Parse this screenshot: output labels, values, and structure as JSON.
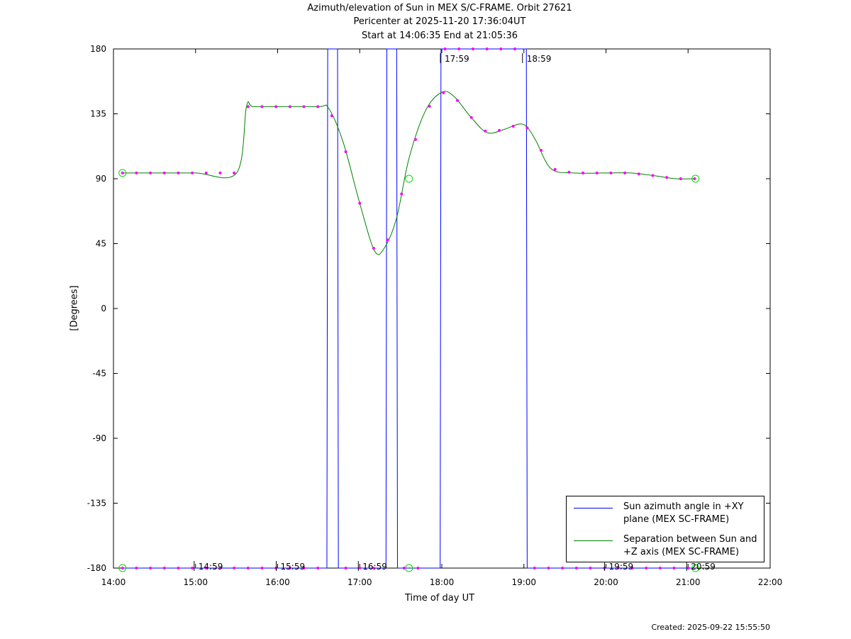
{
  "title": {
    "line1": "Azimuth/elevation of Sun in MEX S/C-FRAME.  Orbit 27621",
    "line2": "Pericenter at 2025-11-20 17:36:04UT",
    "line3": "Start at 14:06:35 End at 21:05:36"
  },
  "created": "Created: 2025-09-22 15:55:50",
  "colors": {
    "azimuth": "#0000ff",
    "separation": "#008000",
    "markers": "#ff00ff",
    "circles": "#00dd00"
  },
  "chart_data": {
    "type": "line",
    "xlabel": "Time of day UT",
    "ylabel": "[Degrees]",
    "xlim": [
      14.0,
      22.0
    ],
    "ylim": [
      -180,
      180
    ],
    "x_ticks": [
      {
        "value": 14,
        "label": "14:00"
      },
      {
        "value": 15,
        "label": "15:00"
      },
      {
        "value": 16,
        "label": "16:00"
      },
      {
        "value": 17,
        "label": "17:00"
      },
      {
        "value": 18,
        "label": "18:00"
      },
      {
        "value": 19,
        "label": "19:00"
      },
      {
        "value": 20,
        "label": "20:00"
      },
      {
        "value": 21,
        "label": "21:00"
      },
      {
        "value": 22,
        "label": "22:00"
      }
    ],
    "y_ticks": [
      180,
      135,
      90,
      45,
      0,
      -45,
      -90,
      -135,
      -180
    ],
    "annotations": [
      {
        "x": 14.983,
        "y": -180,
        "label": "14:59"
      },
      {
        "x": 15.983,
        "y": -180,
        "label": "15:59"
      },
      {
        "x": 16.983,
        "y": -180,
        "label": "16:59"
      },
      {
        "x": 17.983,
        "y": 180,
        "label": "17:59"
      },
      {
        "x": 18.983,
        "y": 180,
        "label": "18:59"
      },
      {
        "x": 19.983,
        "y": -180,
        "label": "19:59"
      },
      {
        "x": 20.983,
        "y": -180,
        "label": "20:59"
      }
    ],
    "series": [
      {
        "name": "Sun azimuth angle in +XY plane (MEX SC-FRAME)",
        "x": [
          14.11,
          16.6,
          16.61,
          16.73,
          16.74,
          17.32,
          17.33,
          17.45,
          17.46,
          17.98,
          17.99,
          19.03,
          19.04,
          21.09
        ],
        "y": [
          -180,
          -180,
          180,
          180,
          -180,
          -180,
          180,
          180,
          -180,
          -180,
          180,
          180,
          -180,
          -180
        ]
      },
      {
        "name": "Separation between Sun and +Z axis (MEX SC-FRAME)",
        "x": [
          14.11,
          14.5,
          15.0,
          15.5,
          15.62,
          15.7,
          16.0,
          16.5,
          16.62,
          16.8,
          17.0,
          17.18,
          17.3,
          17.45,
          17.6,
          17.8,
          18.0,
          18.15,
          18.35,
          18.55,
          18.75,
          18.95,
          19.05,
          19.15,
          19.33,
          19.6,
          20.0,
          20.3,
          20.6,
          20.85,
          21.09
        ],
        "y": [
          94,
          94,
          94,
          94,
          140,
          140,
          140,
          140,
          139,
          115,
          73,
          40,
          42,
          63,
          104,
          137,
          150,
          147,
          133,
          122,
          124,
          128,
          125,
          116,
          97,
          94,
          94,
          94,
          92,
          90,
          90
        ]
      }
    ],
    "markers": {
      "azimuth_points_x": [
        14.11,
        14.28,
        14.45,
        14.62,
        14.79,
        14.96,
        15.13,
        15.3,
        15.47,
        15.64,
        15.81,
        15.98,
        16.15,
        16.32,
        16.49,
        16.83,
        17.0,
        17.17,
        17.54,
        17.71,
        18.04,
        18.21,
        18.38,
        18.55,
        18.72,
        18.89,
        19.13,
        19.3,
        19.47,
        19.64,
        19.81,
        19.98,
        20.15,
        20.32,
        20.49,
        20.66,
        20.83,
        21.0
      ],
      "separation_points_x": [
        14.11,
        14.28,
        14.45,
        14.62,
        14.79,
        14.96,
        15.13,
        15.3,
        15.47,
        15.64,
        15.81,
        15.98,
        16.15,
        16.32,
        16.49,
        16.66,
        16.83,
        17.0,
        17.17,
        17.34,
        17.51,
        17.68,
        17.85,
        18.02,
        18.19,
        18.36,
        18.53,
        18.7,
        18.87,
        19.04,
        19.21,
        19.38,
        19.55,
        19.72,
        19.89,
        20.06,
        20.23,
        20.4,
        20.57,
        20.74,
        20.91,
        21.08
      ]
    },
    "grid": false,
    "legend_position": "bottom-right"
  }
}
